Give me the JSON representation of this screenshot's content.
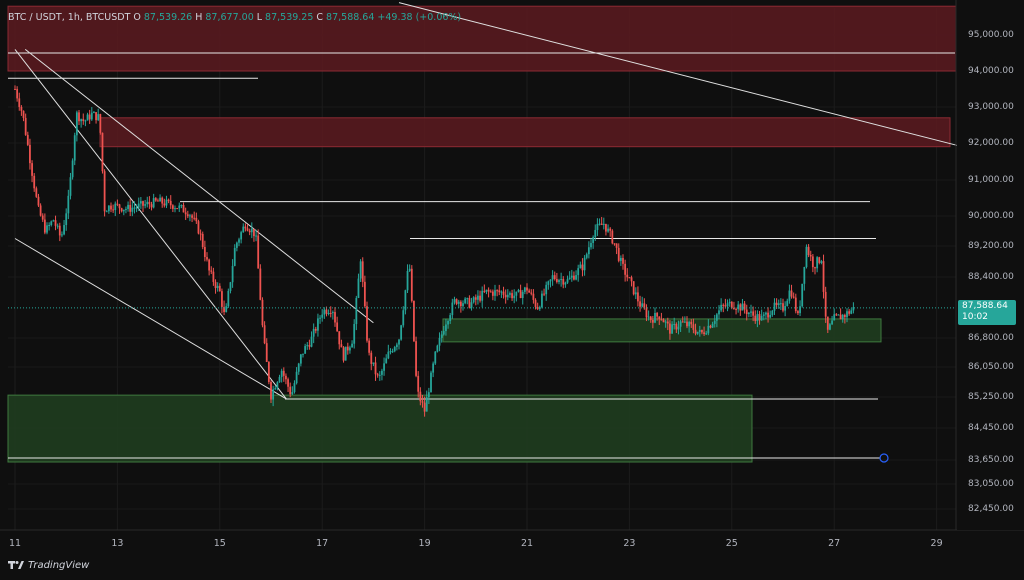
{
  "header": {
    "symbol": "BTC / USDT, 1h, BTCUSDT",
    "o_label": "O",
    "o_value": "87,539.26",
    "h_label": "H",
    "h_value": "87,677.00",
    "l_label": "L",
    "l_value": "87,539.25",
    "c_label": "C",
    "c_value": "87,588.64",
    "change": "+49.38 (+0.06%)"
  },
  "price_axis": [
    "95,000.00",
    "94,000.00",
    "93,000.00",
    "92,000.00",
    "91,000.00",
    "90,000.00",
    "89,200.00",
    "88,400.00",
    "86,800.00",
    "86,050.00",
    "85,250.00",
    "84,450.00",
    "83,650.00",
    "83,050.00",
    "82,450.00"
  ],
  "time_axis": [
    "11",
    "13",
    "15",
    "17",
    "19",
    "21",
    "23",
    "25",
    "27",
    "29"
  ],
  "last_price": {
    "value": "87,588.64",
    "countdown": "10:02"
  },
  "footer": {
    "brand": "TradingView"
  },
  "colors": {
    "background": "#0f0f0f",
    "up": "#26a69a",
    "down": "#ef5350",
    "resistance_zone": "#5c1a20",
    "support_zone": "#1f3d1f"
  },
  "chart_data": {
    "type": "candlestick",
    "interval": "1h",
    "x_range": [
      "11",
      "29"
    ],
    "y_range": [
      82000,
      95800
    ],
    "close_series": [
      [
        11.0,
        93500
      ],
      [
        11.15,
        92800
      ],
      [
        11.3,
        91500
      ],
      [
        11.45,
        90200
      ],
      [
        11.6,
        89600
      ],
      [
        11.75,
        89900
      ],
      [
        11.9,
        89400
      ],
      [
        12.05,
        90500
      ],
      [
        12.2,
        92800
      ],
      [
        12.35,
        92600
      ],
      [
        12.5,
        92800
      ],
      [
        12.65,
        92700
      ],
      [
        12.75,
        90200
      ],
      [
        12.9,
        90300
      ],
      [
        13.2,
        90200
      ],
      [
        13.5,
        90300
      ],
      [
        13.8,
        90400
      ],
      [
        14.1,
        90300
      ],
      [
        14.4,
        90100
      ],
      [
        14.6,
        89600
      ],
      [
        14.8,
        88500
      ],
      [
        15.0,
        88000
      ],
      [
        15.1,
        87300
      ],
      [
        15.3,
        89200
      ],
      [
        15.5,
        89800
      ],
      [
        15.7,
        89500
      ],
      [
        15.85,
        86800
      ],
      [
        16.0,
        85300
      ],
      [
        16.2,
        86000
      ],
      [
        16.4,
        85300
      ],
      [
        16.6,
        86400
      ],
      [
        16.8,
        86800
      ],
      [
        17.0,
        87500
      ],
      [
        17.2,
        87600
      ],
      [
        17.4,
        86300
      ],
      [
        17.6,
        86800
      ],
      [
        17.75,
        88900
      ],
      [
        17.9,
        86400
      ],
      [
        18.1,
        85700
      ],
      [
        18.3,
        86400
      ],
      [
        18.5,
        86800
      ],
      [
        18.7,
        88800
      ],
      [
        18.85,
        85400
      ],
      [
        19.0,
        84900
      ],
      [
        19.2,
        86300
      ],
      [
        19.4,
        87200
      ],
      [
        19.6,
        87800
      ],
      [
        19.9,
        87700
      ],
      [
        20.2,
        88000
      ],
      [
        20.5,
        88000
      ],
      [
        20.8,
        87900
      ],
      [
        21.0,
        88100
      ],
      [
        21.2,
        87600
      ],
      [
        21.5,
        88400
      ],
      [
        21.8,
        88300
      ],
      [
        22.1,
        88700
      ],
      [
        22.3,
        89600
      ],
      [
        22.5,
        89800
      ],
      [
        22.7,
        89300
      ],
      [
        22.85,
        88700
      ],
      [
        23.0,
        88300
      ],
      [
        23.2,
        87700
      ],
      [
        23.4,
        87300
      ],
      [
        23.6,
        87400
      ],
      [
        23.8,
        87000
      ],
      [
        24.0,
        87200
      ],
      [
        24.2,
        87100
      ],
      [
        24.4,
        86900
      ],
      [
        24.6,
        87200
      ],
      [
        24.8,
        87600
      ],
      [
        25.0,
        87700
      ],
      [
        25.2,
        87600
      ],
      [
        25.4,
        87400
      ],
      [
        25.6,
        87300
      ],
      [
        25.8,
        87600
      ],
      [
        26.0,
        87600
      ],
      [
        26.15,
        88100
      ],
      [
        26.3,
        87300
      ],
      [
        26.45,
        89200
      ],
      [
        26.6,
        88700
      ],
      [
        26.75,
        88900
      ],
      [
        26.85,
        86900
      ],
      [
        27.0,
        87300
      ],
      [
        27.2,
        87400
      ],
      [
        27.4,
        87589
      ]
    ],
    "horizontal_levels": [
      94500,
      93800,
      90400,
      89400,
      85200,
      83700
    ],
    "resistance_zones": [
      [
        94000,
        95800
      ],
      [
        91900,
        92700
      ]
    ],
    "support_zones": [
      [
        86700,
        87300
      ],
      [
        83600,
        85300
      ]
    ],
    "trendlines": [
      [
        [
          11.0,
          94600
        ],
        [
          16.3,
          85200
        ]
      ],
      [
        [
          11.0,
          89400
        ],
        [
          16.3,
          85200
        ]
      ],
      [
        [
          11.2,
          94600
        ],
        [
          18.0,
          87200
        ]
      ],
      [
        [
          18.5,
          95900
        ],
        [
          29.5,
          91900
        ]
      ]
    ],
    "last_price": 87588.64
  }
}
